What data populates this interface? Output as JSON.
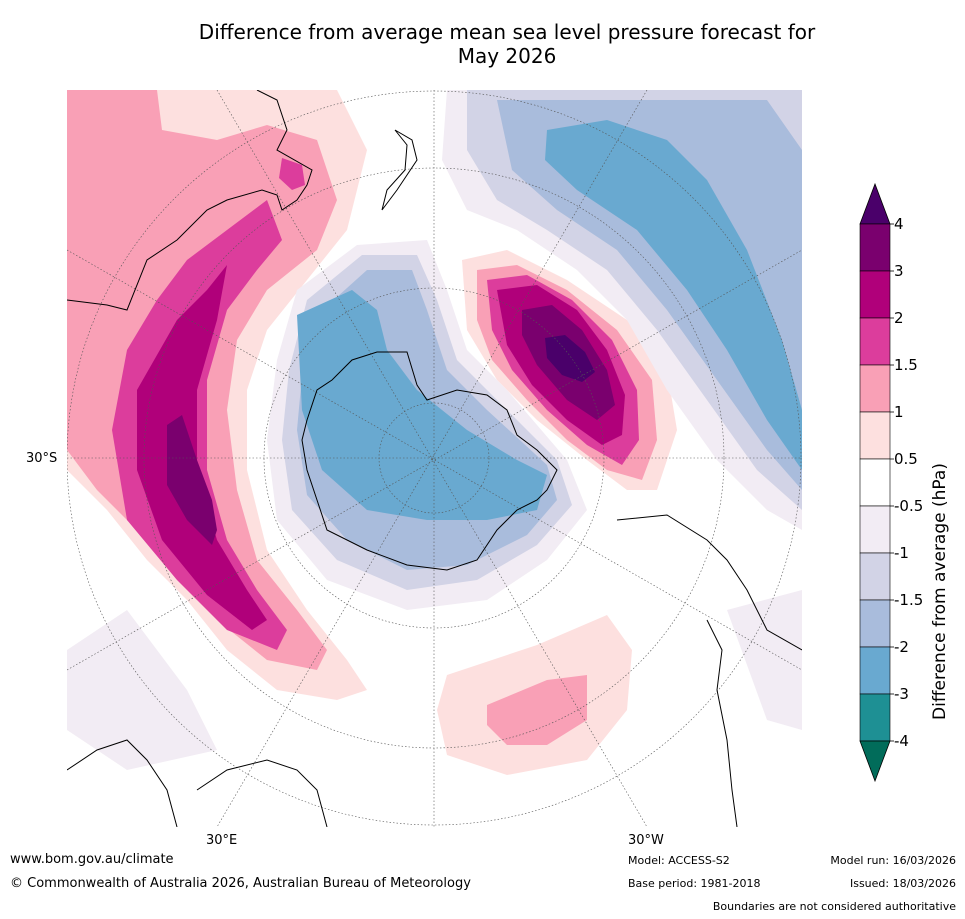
{
  "title_line1": "Difference from average mean sea level pressure forecast for",
  "title_line2": "May 2026",
  "map": {
    "lat_label": "30°S",
    "lon_label_east": "30°E",
    "lon_label_west": "30°W"
  },
  "colorbar": {
    "title": "Difference from average (hPa)",
    "labels": [
      "4",
      "3",
      "2",
      "1.5",
      "1",
      "0.5",
      "-0.5",
      "-1",
      "-1.5",
      "-2",
      "-3",
      "-4"
    ],
    "colors": [
      "#4a006a",
      "#7a006e",
      "#b0007a",
      "#dc3d9c",
      "#f9a0b6",
      "#fde0df",
      "#ffffff",
      "#f2ecf4",
      "#d2d3e6",
      "#a9bcdc",
      "#69a9d0",
      "#1e9094",
      "#016c5a"
    ]
  },
  "footer": {
    "website": "www.bom.gov.au/climate",
    "copyright": "© Commonwealth of Australia 2026, Australian Bureau of Meteorology",
    "model": "Model: ACCESS-S2",
    "base_period": "Base period: 1981-2018",
    "model_run": "Model run: 16/03/2026",
    "issued": "Issued: 18/03/2026",
    "disclaimer": "Boundaries are not considered authoritative"
  }
}
